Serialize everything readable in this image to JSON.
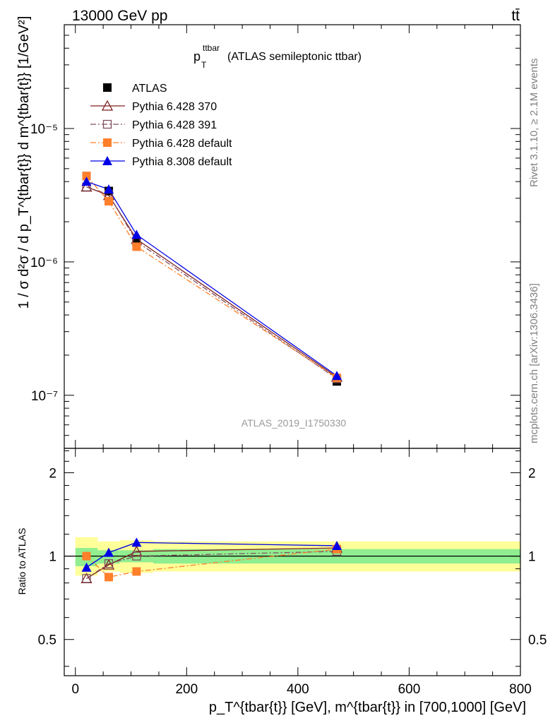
{
  "header": {
    "left": "13000 GeV pp",
    "right": "tt̄"
  },
  "side_labels": {
    "rivet": "Rivet 3.1.10, ≥ 2.1M events",
    "mcplots": "mcplots.cern.ch [arXiv:1306.3436]"
  },
  "main": {
    "title_main": "p",
    "title_sup": "ttbar",
    "title_sub": "T",
    "title_rest": " (ATLAS semileptonic ttbar)",
    "analysis_id": "ATLAS_2019_I1750330",
    "ylabel": "1 / σ d²σ / d p_T^{tbar{t}} d m^{tbar{t}} [1/GeV²]",
    "ytick_labels": [
      "10⁻⁷",
      "10⁻⁶",
      "10⁻⁵"
    ]
  },
  "ratio": {
    "ylabel": "Ratio to ATLAS",
    "ytick_labels": [
      "0.5",
      "1",
      "2"
    ]
  },
  "xaxis": {
    "label": "p_T^{tbar{t}} [GeV], m^{tbar{t}} in [700,1000] [GeV]",
    "tick_labels": [
      "0",
      "200",
      "400",
      "600",
      "800"
    ]
  },
  "legend": [
    {
      "name": "ATLAS"
    },
    {
      "name": "Pythia 6.428 370"
    },
    {
      "name": "Pythia 6.428 391"
    },
    {
      "name": "Pythia 6.428 default"
    },
    {
      "name": "Pythia 8.308 default"
    }
  ],
  "chart_data": {
    "type": "scatter",
    "x_log": false,
    "y_log": true,
    "xlim": [
      -20,
      800
    ],
    "ylim": [
      4e-08,
      6e-05
    ],
    "ratio_ylim": [
      0.37,
      2.45
    ],
    "ratio_y_log": true,
    "x_bins": [
      [
        0,
        40
      ],
      [
        40,
        80
      ],
      [
        80,
        140
      ],
      [
        140,
        800
      ]
    ],
    "x": [
      20,
      60,
      110,
      470
    ],
    "series": [
      {
        "name": "ATLAS",
        "color": "#000000",
        "marker": "square-filled",
        "line": "none",
        "values": [
          4.4e-06,
          3.4e-06,
          1.42e-06,
          1.27e-07
        ],
        "ratio": [
          1.0,
          1.0,
          1.0,
          1.0
        ]
      },
      {
        "name": "Pythia 6.428 370",
        "color": "#7f1f1f",
        "marker": "triangle-open",
        "line": "solid",
        "values": [
          3.65e-06,
          3.15e-06,
          1.48e-06,
          1.37e-07
        ],
        "ratio": [
          0.83,
          0.93,
          1.04,
          1.07
        ]
      },
      {
        "name": "Pythia 6.428 391",
        "color": "#7f4f5f",
        "marker": "square-open",
        "line": "dashdot",
        "values": [
          3.65e-06,
          3.2e-06,
          1.42e-06,
          1.33e-07
        ],
        "ratio": [
          0.83,
          0.94,
          1.0,
          1.04
        ]
      },
      {
        "name": "Pythia 6.428 default",
        "color": "#ff7f2a",
        "marker": "square-filled",
        "line": "dashdot",
        "values": [
          4.4e-06,
          2.85e-06,
          1.3e-06,
          1.35e-07
        ],
        "ratio": [
          1.0,
          0.84,
          0.88,
          1.06
        ]
      },
      {
        "name": "Pythia 8.308 default",
        "color": "#0000e6",
        "marker": "triangle-filled",
        "line": "solid",
        "values": [
          4e-06,
          3.5e-06,
          1.6e-06,
          1.4e-07
        ],
        "ratio": [
          0.91,
          1.03,
          1.12,
          1.09
        ]
      }
    ],
    "bands": {
      "inner_color": "#90ee90",
      "outer_color": "#ffff99",
      "inner": [
        [
          0.92,
          1.07
        ],
        [
          0.94,
          1.05
        ],
        [
          0.95,
          1.05
        ],
        [
          0.94,
          1.06
        ]
      ],
      "outer": [
        [
          0.85,
          1.17
        ],
        [
          0.88,
          1.13
        ],
        [
          0.87,
          1.14
        ],
        [
          0.88,
          1.13
        ]
      ]
    }
  }
}
